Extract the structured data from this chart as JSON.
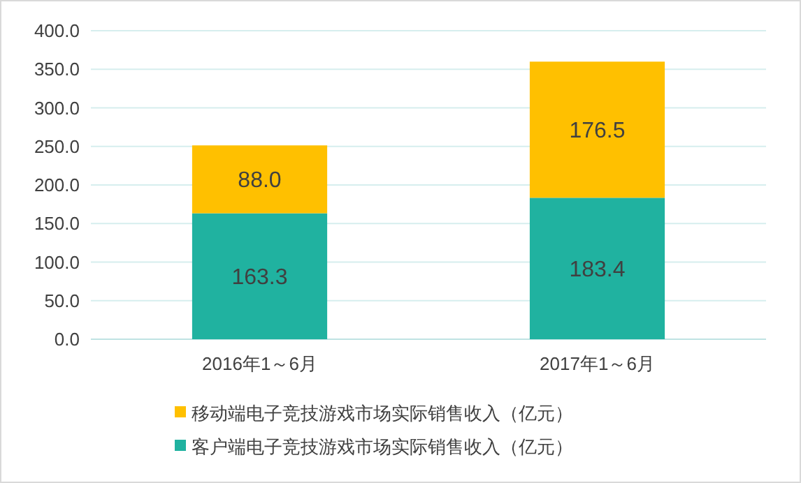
{
  "chart_data": {
    "type": "bar",
    "stacked": true,
    "categories": [
      "2016年1～6月",
      "2017年1～6月"
    ],
    "series": [
      {
        "name": "客户端电子竞技游戏市场实际销售收入（亿元）",
        "color": "#20b2a0",
        "values": [
          163.3,
          183.4
        ],
        "value_labels": [
          "163.3",
          "183.4"
        ]
      },
      {
        "name": "移动端电子竞技游戏市场实际销售收入（亿元）",
        "color": "#ffc000",
        "values": [
          88.0,
          176.5
        ],
        "value_labels": [
          "88.0",
          "176.5"
        ]
      }
    ],
    "ylim": [
      0,
      400
    ],
    "yticks": [
      {
        "value": 0,
        "label": "0.0"
      },
      {
        "value": 50,
        "label": "50.0"
      },
      {
        "value": 100,
        "label": "100.0"
      },
      {
        "value": 150,
        "label": "150.0"
      },
      {
        "value": 200,
        "label": "200.0"
      },
      {
        "value": 250,
        "label": "250.0"
      },
      {
        "value": 300,
        "label": "300.0"
      },
      {
        "value": 350,
        "label": "350.0"
      },
      {
        "value": 400,
        "label": "400.0"
      }
    ],
    "grid": "y",
    "legend": "bottom"
  }
}
